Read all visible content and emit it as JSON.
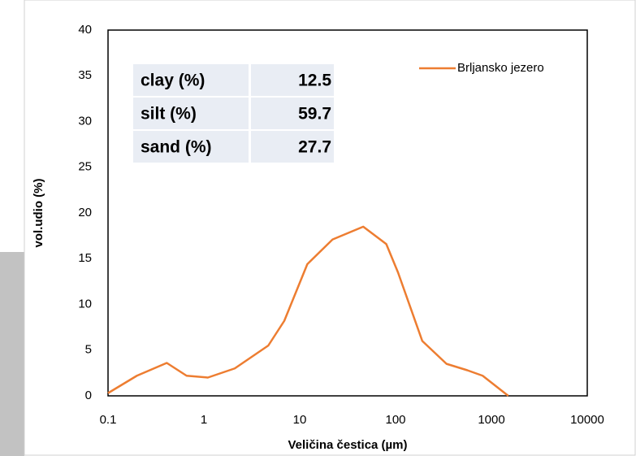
{
  "chart_data": {
    "type": "line",
    "x_label": "Veličina čestica (µm)",
    "y_label": "vol.udio (%)",
    "x": [
      0.1,
      0.2,
      0.41,
      0.66,
      1.1,
      2.1,
      4.7,
      6.9,
      12,
      22,
      46,
      80,
      106,
      190,
      340,
      560,
      810,
      1500
    ],
    "series": [
      {
        "name": "Brljansko jezero",
        "color": "#ED7D31",
        "values": [
          0.3,
          2.2,
          3.6,
          2.2,
          2.0,
          3.0,
          5.5,
          8.2,
          14.4,
          17.1,
          18.5,
          16.6,
          13.5,
          6.0,
          3.5,
          2.8,
          2.2,
          0
        ]
      }
    ],
    "xlim": [
      0.1,
      10000
    ],
    "xticks": [
      0.1,
      1,
      10,
      100,
      1000,
      10000
    ],
    "x_log": true,
    "ylim": [
      0,
      40
    ],
    "yticks": [
      0,
      5,
      10,
      15,
      20,
      25,
      30,
      35,
      40
    ],
    "grid": false,
    "legend": "top-right",
    "inset_table": {
      "rows": [
        {
          "label": "clay (%)",
          "value": 12.5
        },
        {
          "label": "silt (%)",
          "value": 59.7
        },
        {
          "label": "sand (%)",
          "value": 27.7
        }
      ]
    }
  }
}
